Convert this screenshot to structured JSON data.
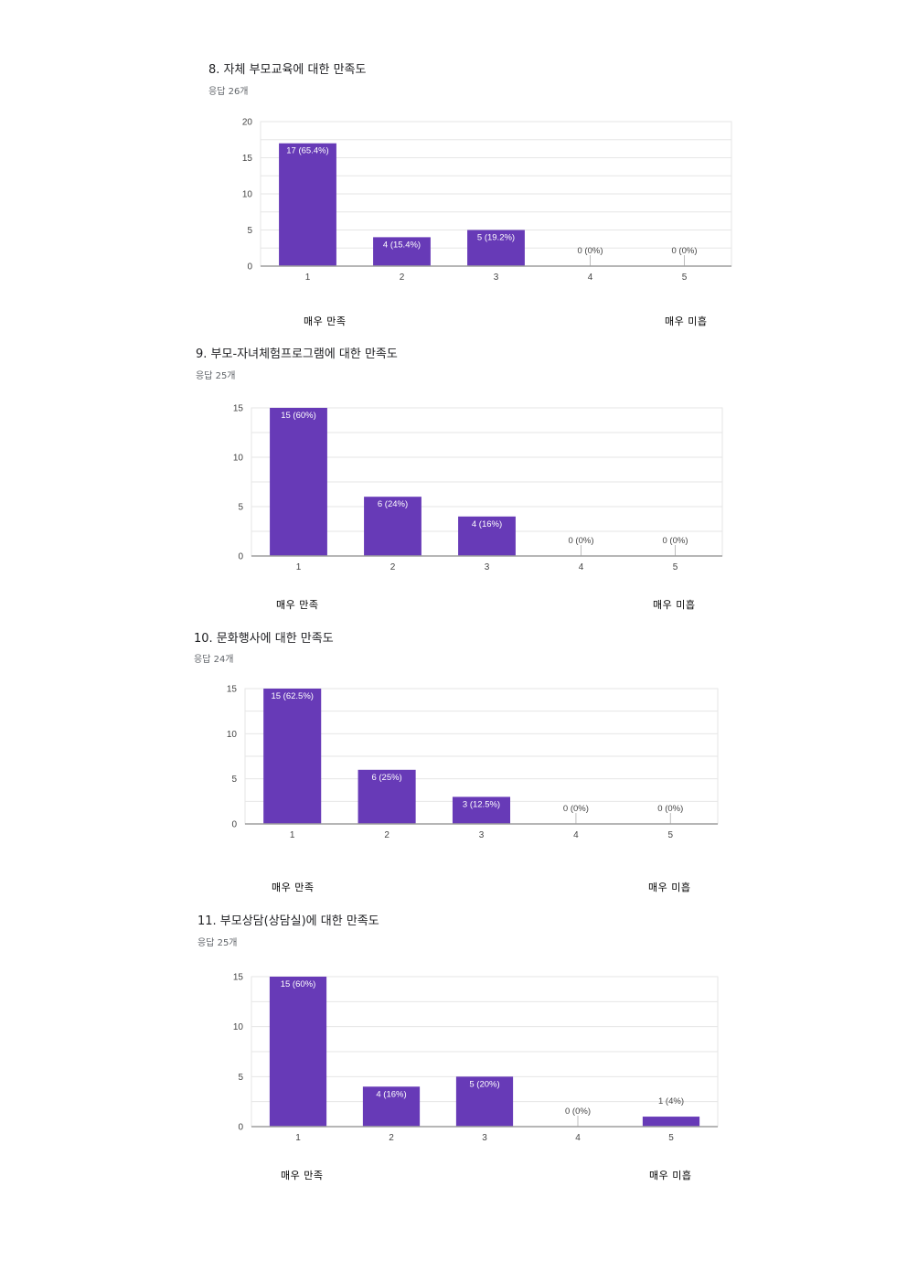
{
  "chart_data": [
    {
      "type": "bar",
      "title": "8. 자체 부모교육에 대한 만족도",
      "subtitle": "응답 26개",
      "categories": [
        "1",
        "2",
        "3",
        "4",
        "5"
      ],
      "values": [
        17,
        4,
        5,
        0,
        0
      ],
      "data_labels": [
        "17 (65.4%)",
        "4 (15.4%)",
        "5 (19.2%)",
        "0 (0%)",
        "0 (0%)"
      ],
      "yticks": [
        "0",
        "5",
        "10",
        "15",
        "20"
      ],
      "ylim": [
        0,
        20
      ],
      "scale_left": "매우 만족",
      "scale_right": "매우 미흡",
      "grid": true
    },
    {
      "type": "bar",
      "title": "9. 부모-자녀체험프로그램에 대한 만족도",
      "subtitle": "응답 25개",
      "categories": [
        "1",
        "2",
        "3",
        "4",
        "5"
      ],
      "values": [
        15,
        6,
        4,
        0,
        0
      ],
      "data_labels": [
        "15 (60%)",
        "6 (24%)",
        "4 (16%)",
        "0 (0%)",
        "0 (0%)"
      ],
      "yticks": [
        "0",
        "5",
        "10",
        "15"
      ],
      "ylim": [
        0,
        15
      ],
      "scale_left": "매우 만족",
      "scale_right": "매우 미흡",
      "grid": true
    },
    {
      "type": "bar",
      "title": "10. 문화행사에 대한 만족도",
      "subtitle": "응답 24개",
      "categories": [
        "1",
        "2",
        "3",
        "4",
        "5"
      ],
      "values": [
        15,
        6,
        3,
        0,
        0
      ],
      "data_labels": [
        "15 (62.5%)",
        "6 (25%)",
        "3 (12.5%)",
        "0 (0%)",
        "0 (0%)"
      ],
      "yticks": [
        "0",
        "5",
        "10",
        "15"
      ],
      "ylim": [
        0,
        15
      ],
      "scale_left": "매우 만족",
      "scale_right": "매우 미흡",
      "grid": true
    },
    {
      "type": "bar",
      "title": "11. 부모상담(상담실)에 대한 만족도",
      "subtitle": "응답 25개",
      "categories": [
        "1",
        "2",
        "3",
        "4",
        "5"
      ],
      "values": [
        15,
        4,
        5,
        0,
        1
      ],
      "data_labels": [
        "15 (60%)",
        "4 (16%)",
        "5 (20%)",
        "0 (0%)",
        "1 (4%)"
      ],
      "yticks": [
        "0",
        "5",
        "10",
        "15"
      ],
      "ylim": [
        0,
        15
      ],
      "scale_left": "매우 만족",
      "scale_right": "매우 미흡",
      "grid": true
    }
  ],
  "colors": {
    "bar": "#673ab7",
    "grid": "#e6e6e6",
    "axis": "#9e9e9e",
    "tick_text": "#444444",
    "label_inside": "#ffffff",
    "label_outside": "#444444"
  }
}
